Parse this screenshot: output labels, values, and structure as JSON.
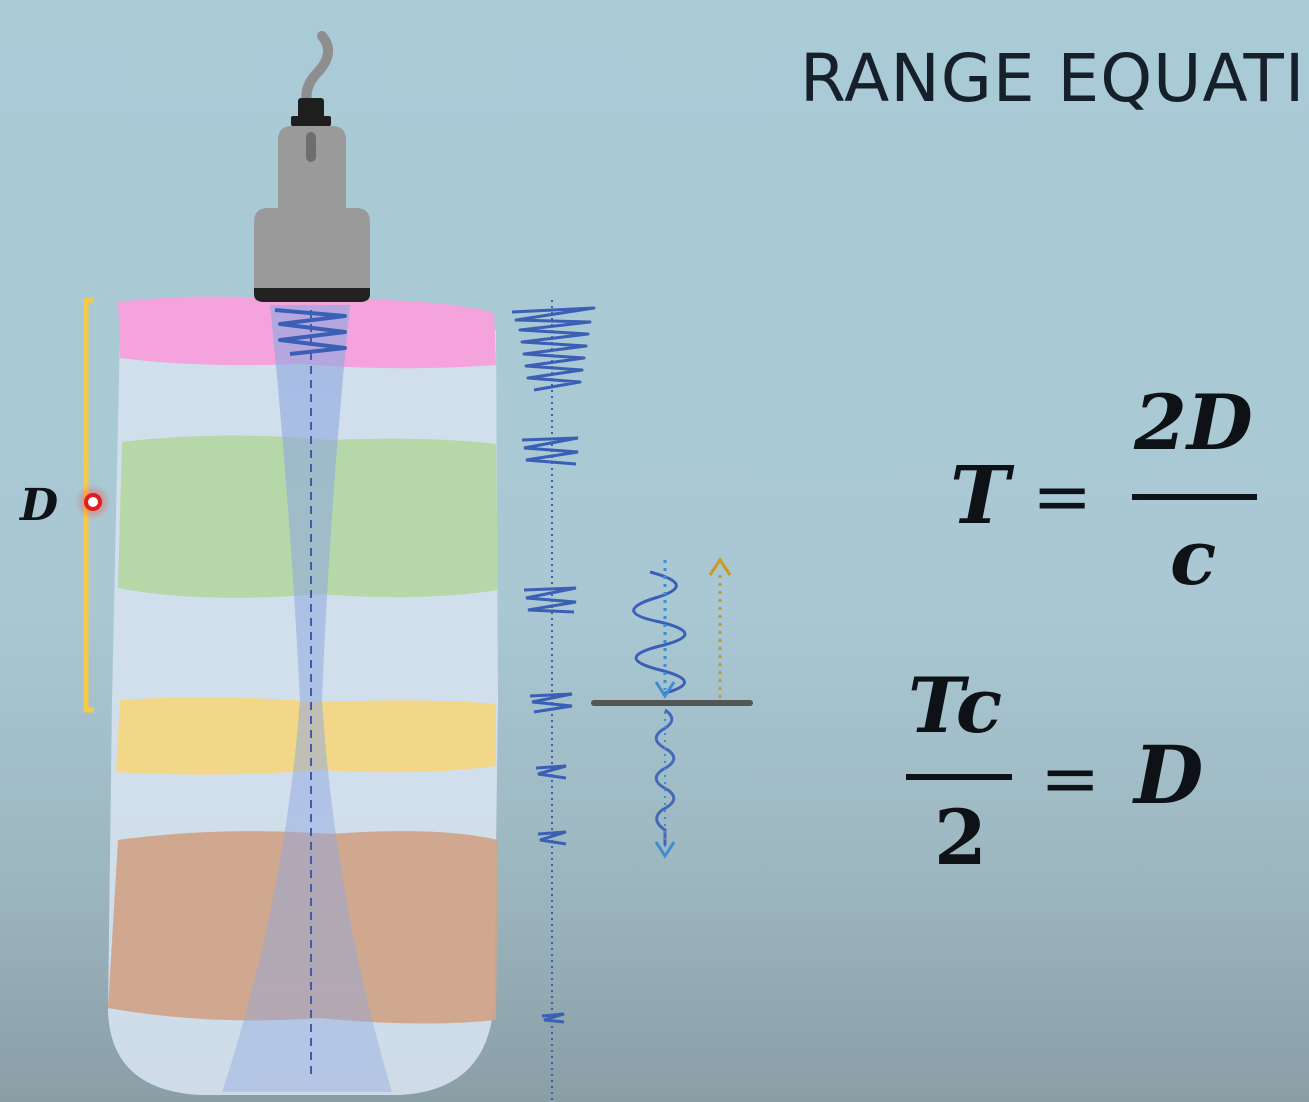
{
  "title": "RANGE EQUATI",
  "depth_label": "D",
  "equation1": {
    "lhs": "T",
    "equals": "=",
    "numerator": "2D",
    "denominator": "c"
  },
  "equation2": {
    "numerator": "Tc",
    "denominator": "2",
    "equals": "=",
    "rhs": "D"
  },
  "colors": {
    "background": "#a9cbd6",
    "layer_pink": "#f4a3dc",
    "layer_green": "#b6d7a8",
    "layer_yellow": "#f3d789",
    "layer_orange": "#cfa48a",
    "tissue": "#d5e1ee",
    "bracket": "#f6c948",
    "wave": "#3b5fb5",
    "echo_arrow": "#e3b52c",
    "probe": "#9a9a9a"
  }
}
